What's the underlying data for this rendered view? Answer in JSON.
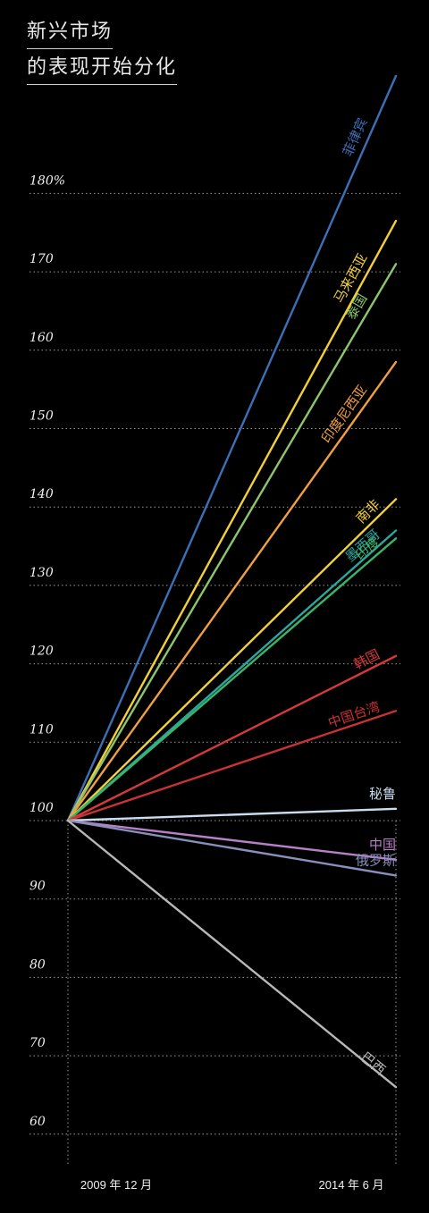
{
  "title": {
    "line1": "新兴市场",
    "line2": "的表现开始分化"
  },
  "chart_data": {
    "type": "line",
    "x": [
      "2009 年 12 月",
      "2014 年 6 月"
    ],
    "y_ticks": [
      "180%",
      "170",
      "160",
      "150",
      "140",
      "130",
      "120",
      "110",
      "100",
      "90",
      "80",
      "70",
      "60"
    ],
    "ylim": [
      60,
      180
    ],
    "grid": true,
    "background": "#000000",
    "series": [
      {
        "name": "菲律宾",
        "values": [
          100,
          195
        ],
        "color": "#3d6fb6"
      },
      {
        "name": "马来西亚",
        "values": [
          100,
          176.5
        ],
        "color": "#f2d03b"
      },
      {
        "name": "泰国",
        "values": [
          100,
          171
        ],
        "color": "#8dc56c"
      },
      {
        "name": "印度尼西亚",
        "values": [
          100,
          158.5
        ],
        "color": "#f0a040"
      },
      {
        "name": "南非",
        "values": [
          100,
          141
        ],
        "color": "#f2d03b"
      },
      {
        "name": "墨西哥",
        "values": [
          100,
          137
        ],
        "color": "#2aa8a0"
      },
      {
        "name": "印度",
        "values": [
          100,
          136
        ],
        "color": "#3ab46a"
      },
      {
        "name": "韩国",
        "values": [
          100,
          121
        ],
        "color": "#d83a3a"
      },
      {
        "name": "中国台湾",
        "values": [
          100,
          114
        ],
        "color": "#c83232"
      },
      {
        "name": "秘鲁",
        "values": [
          100,
          101.5
        ],
        "color": "#c9dcf0"
      },
      {
        "name": "中国",
        "values": [
          100,
          95
        ],
        "color": "#b880c8"
      },
      {
        "name": "俄罗斯",
        "values": [
          100,
          93
        ],
        "color": "#8a90bc"
      },
      {
        "name": "巴西",
        "values": [
          100,
          66
        ],
        "color": "#b8b8b8"
      }
    ]
  }
}
